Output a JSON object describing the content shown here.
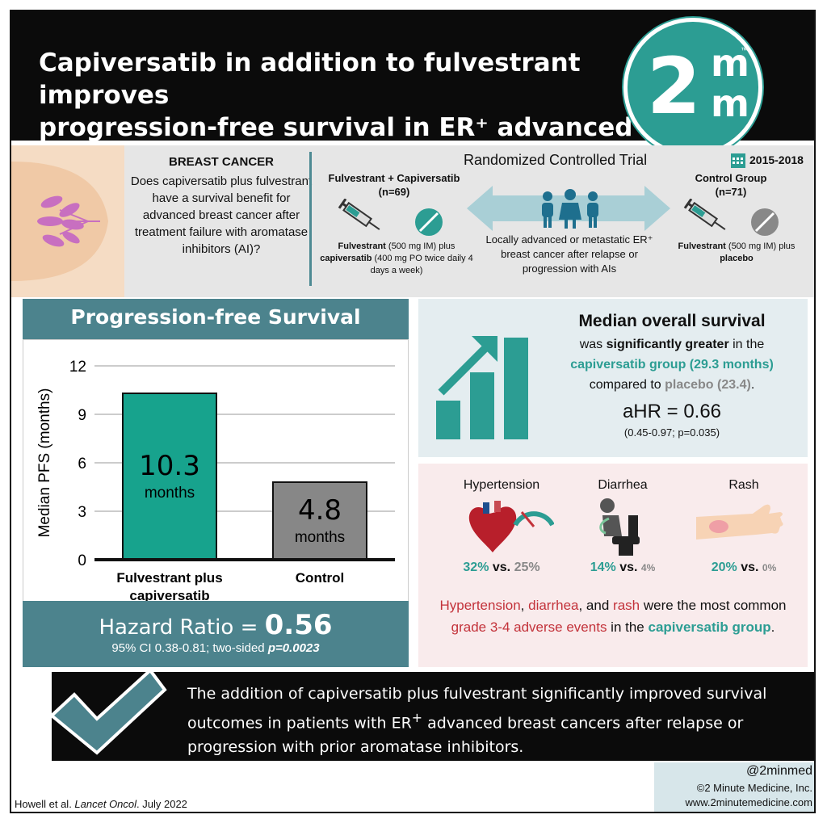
{
  "header": {
    "title_line1": "Capiversatib in addition to fulvestrant improves",
    "title_line2": "progression-free survival in ER⁺ advanced breast cancer",
    "logo_number": "2",
    "logo_letter_top": "m",
    "logo_letter_bottom": "m",
    "logo_tm": "™"
  },
  "background": {
    "heading": "BREAST CANCER",
    "question": "Does capiversatib plus fulvestrant have a survival benefit for advanced breast cancer after treatment failure with aromatase inhibitors (AI)?"
  },
  "trial": {
    "design": "Randomized Controlled Trial",
    "years": "2015-2018",
    "arm1_title": "Fulvestrant + Capiversatib",
    "arm1_n": "(n=69)",
    "arm1_desc_bold1": "Fulvestrant",
    "arm1_desc_mid": " (500 mg IM) plus ",
    "arm1_desc_bold2": "capiversatib",
    "arm1_desc_end": " (400 mg PO twice daily 4 days a week)",
    "population": "Locally advanced or metastatic ER⁺ breast cancer after relapse or progression with AIs",
    "arm2_title": "Control Group",
    "arm2_n": "(n=71)",
    "arm2_desc_bold1": "Fulvestrant",
    "arm2_desc_mid": " (500 mg IM) plus ",
    "arm2_desc_bold2": "placebo"
  },
  "pfs": {
    "panel_title": "Progression-free Survival",
    "hr_prefix": "Hazard Ratio = ",
    "hr_value": "0.56",
    "ci_text": "95% CI 0.38-0.81; two-sided ",
    "p_value": "p=0.0023"
  },
  "chart_data": {
    "type": "bar",
    "categories": [
      "Fulvestrant plus capiversatib",
      "Control"
    ],
    "values": [
      10.3,
      4.8
    ],
    "value_labels": [
      "10.3",
      "4.8"
    ],
    "unit_label": "months",
    "ylabel": "Median PFS (months)",
    "yticks": [
      0,
      3,
      6,
      9,
      12
    ],
    "ylim": [
      0,
      12
    ],
    "grid": true,
    "colors": [
      "#17a38d",
      "#878787"
    ]
  },
  "os": {
    "title": "Median overall survival",
    "line1": "was ",
    "line1_bold": "significantly greater",
    "line1_end": " in the",
    "line2": "capiversatib group (29.3 months)",
    "line3_start": "compared to ",
    "line3_grey": "placebo (23.4)",
    "line3_end": ".",
    "ahr": "aHR = 0.66",
    "ahr_ci": "(0.45-0.97; p=0.035)"
  },
  "adverse_events": {
    "items": [
      {
        "label": "Hypertension",
        "treat": "32%",
        "vs": " vs. ",
        "control": "25%",
        "icon": "heart-gauge-icon"
      },
      {
        "label": "Diarrhea",
        "treat": "14%",
        "vs": " vs. ",
        "control": "4%",
        "icon": "toilet-person-icon"
      },
      {
        "label": "Rash",
        "treat": "20%",
        "vs": " vs. ",
        "control": "0%",
        "icon": "arm-rash-icon"
      }
    ],
    "summary_ht": "Hypertension",
    "summary_c1": ", ",
    "summary_di": "diarrhea",
    "summary_c2": ", and ",
    "summary_ra": "rash",
    "summary_mid": " were the most common ",
    "summary_grade": "grade 3-4 adverse events",
    "summary_in": " in the ",
    "summary_group": "capiversatib group",
    "summary_end": "."
  },
  "conclusion": {
    "text1": "The addition of capiversatib plus fulvestrant significantly improved survival outcomes in patients with ER",
    "sup": "+",
    "text2": " advanced breast cancers after relapse or progression with prior aromatase inhibitors."
  },
  "footer": {
    "handle": "@2minmed",
    "company": "©2 Minute Medicine, Inc.",
    "website": "www.2minutemedicine.com",
    "citation_authors": "Howell et al. ",
    "citation_journal": "Lancet Oncol",
    "citation_date": ". July 2022"
  },
  "colors": {
    "teal": "#2c9d93",
    "slate": "#4c838d",
    "red": "#c3323a",
    "grey": "#888888"
  }
}
